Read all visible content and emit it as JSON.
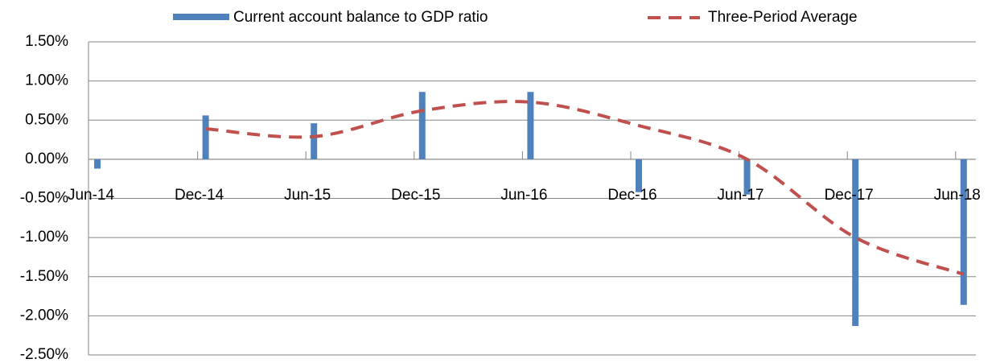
{
  "chart_data": {
    "type": "bar-line",
    "categories": [
      "Jun-14",
      "Dec-14",
      "Jun-15",
      "Dec-15",
      "Jun-16",
      "Dec-16",
      "Jun-17",
      "Dec-17",
      "Jun-18"
    ],
    "series": [
      {
        "name": "Current account balance to GDP ratio",
        "type": "bar",
        "color": "#4f81bd",
        "values": [
          -0.12,
          0.56,
          0.46,
          0.86,
          0.86,
          -0.42,
          -0.45,
          -2.13,
          -1.86
        ]
      },
      {
        "name": "Three-Period Average",
        "type": "line",
        "color": "#c0504d",
        "dashed": true,
        "values": [
          null,
          0.39,
          0.29,
          0.62,
          0.73,
          0.43,
          0.0,
          -1.0,
          -1.47
        ]
      }
    ],
    "ylim": [
      -2.5,
      1.5
    ],
    "yticks": [
      {
        "value": -2.5,
        "label": "-2.50%"
      },
      {
        "value": -2.0,
        "label": "-2.00%"
      },
      {
        "value": -1.5,
        "label": "-1.50%"
      },
      {
        "value": -1.0,
        "label": "-1.00%"
      },
      {
        "value": -0.5,
        "label": "-0.50%"
      },
      {
        "value": 0.0,
        "label": "0.00%"
      },
      {
        "value": 0.5,
        "label": "0.50%"
      },
      {
        "value": 1.0,
        "label": "1.00%"
      },
      {
        "value": 1.5,
        "label": "1.50%"
      }
    ],
    "grid": true,
    "legend": "top"
  }
}
